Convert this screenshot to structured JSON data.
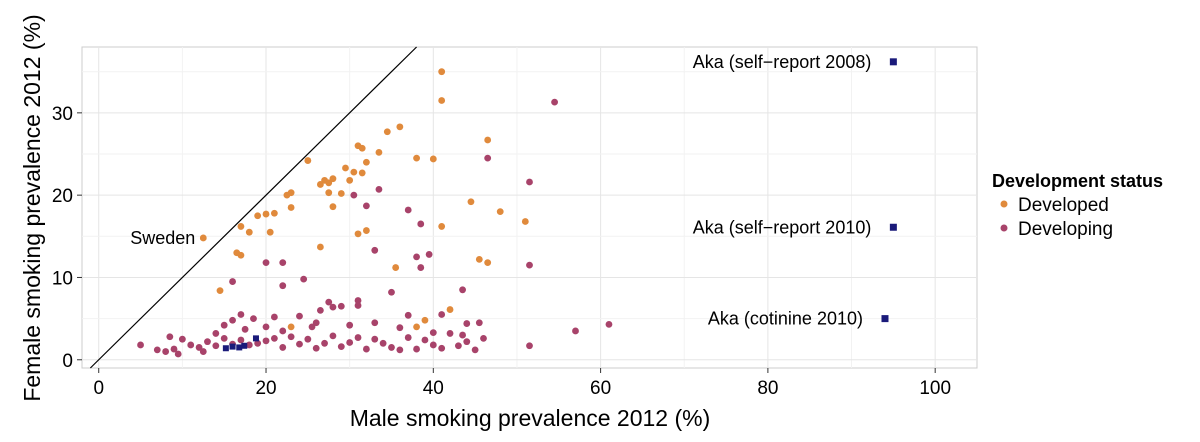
{
  "chart_data": {
    "type": "scatter",
    "xlabel": "Male smoking prevalence 2012 (%)",
    "ylabel": "Female smoking prevalence 2012 (%)",
    "xlim": [
      -2,
      105
    ],
    "ylim": [
      -1,
      38
    ],
    "x_ticks": [
      0,
      20,
      40,
      60,
      80,
      100
    ],
    "y_ticks": [
      0,
      10,
      20,
      30
    ],
    "grid": true,
    "legend": {
      "title": "Development status",
      "position": "right",
      "entries": [
        {
          "label": "Developed",
          "color": "#E08A3C"
        },
        {
          "label": "Developing",
          "color": "#A8436A"
        }
      ]
    },
    "reference_line": {
      "label": "y = x",
      "slope": 1,
      "intercept": 0,
      "color": "#000000"
    },
    "series": [
      {
        "name": "Developed",
        "color": "#E08A3C",
        "points": [
          [
            41,
            35
          ],
          [
            41,
            31.5
          ],
          [
            36,
            28.3
          ],
          [
            34.5,
            27.7
          ],
          [
            46.5,
            26.7
          ],
          [
            31,
            26
          ],
          [
            31.5,
            25.7
          ],
          [
            33.5,
            25.2
          ],
          [
            40,
            24.4
          ],
          [
            38,
            24.5
          ],
          [
            25,
            24.2
          ],
          [
            32,
            24
          ],
          [
            31.5,
            22.7
          ],
          [
            29.5,
            23.3
          ],
          [
            30.5,
            22.8
          ],
          [
            30,
            21.8
          ],
          [
            27,
            21.8
          ],
          [
            27.5,
            21.5
          ],
          [
            26.5,
            21.3
          ],
          [
            28,
            22
          ],
          [
            29,
            20.2
          ],
          [
            27.5,
            20.3
          ],
          [
            23,
            20.3
          ],
          [
            22.5,
            20
          ],
          [
            21,
            17.8
          ],
          [
            19,
            17.5
          ],
          [
            20,
            17.7
          ],
          [
            23,
            18.5
          ],
          [
            28,
            18.6
          ],
          [
            44.5,
            19.2
          ],
          [
            48,
            18
          ],
          [
            51,
            16.8
          ],
          [
            17,
            16.2
          ],
          [
            18,
            15.5
          ],
          [
            20.5,
            15.5
          ],
          [
            31,
            15.3
          ],
          [
            32,
            15.7
          ],
          [
            41,
            16.2
          ],
          [
            16.5,
            13
          ],
          [
            17,
            12.7
          ],
          [
            26.5,
            13.7
          ],
          [
            12.5,
            14.8
          ],
          [
            35.5,
            11.2
          ],
          [
            45.5,
            12.2
          ],
          [
            46.5,
            11.8
          ],
          [
            14.5,
            8.4
          ],
          [
            23,
            4
          ],
          [
            39,
            4.8
          ],
          [
            38,
            4
          ],
          [
            42,
            6.1
          ]
        ]
      },
      {
        "name": "Developing",
        "color": "#A8436A",
        "points": [
          [
            54.5,
            31.3
          ],
          [
            46.5,
            24.5
          ],
          [
            51.5,
            21.6
          ],
          [
            30.5,
            20
          ],
          [
            33.5,
            20.7
          ],
          [
            32,
            18.7
          ],
          [
            37,
            18.2
          ],
          [
            38.5,
            16.5
          ],
          [
            33,
            13.3
          ],
          [
            38,
            12.5
          ],
          [
            39.5,
            12.8
          ],
          [
            38.5,
            11.2
          ],
          [
            51.5,
            11.5
          ],
          [
            20,
            11.8
          ],
          [
            22,
            11.8
          ],
          [
            16,
            9.5
          ],
          [
            24.5,
            9.8
          ],
          [
            22,
            9
          ],
          [
            31,
            7.2
          ],
          [
            43.5,
            8.5
          ],
          [
            29,
            6.5
          ],
          [
            27.5,
            7
          ],
          [
            26.5,
            6
          ],
          [
            35,
            8.2
          ],
          [
            18.5,
            5
          ],
          [
            20,
            4
          ],
          [
            17.5,
            3.7
          ],
          [
            22,
            3.5
          ],
          [
            25.5,
            4
          ],
          [
            30,
            4.2
          ],
          [
            33,
            4.5
          ],
          [
            36,
            3.9
          ],
          [
            40,
            3.3
          ],
          [
            43.5,
            3
          ],
          [
            45.5,
            4.5
          ],
          [
            57,
            3.5
          ],
          [
            61,
            4.3
          ],
          [
            5,
            1.8
          ],
          [
            7,
            1.2
          ],
          [
            8,
            1
          ],
          [
            9,
            1.3
          ],
          [
            10,
            2.5
          ],
          [
            11,
            1.8
          ],
          [
            12,
            1.5
          ],
          [
            13,
            2.2
          ],
          [
            14,
            1.7
          ],
          [
            15,
            2.6
          ],
          [
            16,
            1.9
          ],
          [
            17,
            2.4
          ],
          [
            18,
            1.8
          ],
          [
            19,
            2
          ],
          [
            20,
            2.3
          ],
          [
            21,
            2.6
          ],
          [
            22,
            1.5
          ],
          [
            23,
            2.8
          ],
          [
            24,
            1.9
          ],
          [
            25,
            2.5
          ],
          [
            26,
            1.4
          ],
          [
            27,
            2
          ],
          [
            28,
            2.9
          ],
          [
            29,
            1.6
          ],
          [
            30,
            2.1
          ],
          [
            31,
            2.7
          ],
          [
            32,
            1.3
          ],
          [
            33,
            2.5
          ],
          [
            34,
            2
          ],
          [
            35,
            1.5
          ],
          [
            36,
            1.2
          ],
          [
            37,
            2.7
          ],
          [
            38,
            1.3
          ],
          [
            39,
            2.4
          ],
          [
            40,
            1.8
          ],
          [
            41,
            1.4
          ],
          [
            42,
            3.2
          ],
          [
            43,
            1.7
          ],
          [
            44,
            2.2
          ],
          [
            45,
            1.2
          ],
          [
            46,
            2.6
          ],
          [
            51.5,
            1.7
          ],
          [
            8.5,
            2.8
          ],
          [
            9.5,
            0.7
          ],
          [
            12.5,
            1
          ],
          [
            14,
            3.2
          ],
          [
            15,
            4.2
          ],
          [
            16,
            4.8
          ],
          [
            17,
            5.5
          ],
          [
            21,
            5.2
          ],
          [
            24,
            5.3
          ],
          [
            26,
            4.5
          ],
          [
            28,
            6.4
          ],
          [
            31,
            6.6
          ],
          [
            37,
            5.4
          ],
          [
            41,
            5.5
          ],
          [
            44,
            4.4
          ]
        ]
      },
      {
        "name": "Aka",
        "color": "#1A1A7A",
        "points": [
          [
            15.2,
            1.4
          ],
          [
            16,
            1.6
          ],
          [
            16.8,
            1.5
          ],
          [
            17.4,
            1.7
          ],
          [
            18.8,
            2.6
          ]
        ]
      }
    ],
    "annotations": [
      {
        "text": "Sweden",
        "x": 12.5,
        "y": 14.8
      },
      {
        "text": "Aka (self−report 2008)",
        "x": 95,
        "y": 36.2,
        "marker": "square",
        "color": "#1A1A7A"
      },
      {
        "text": "Aka (self−report 2010)",
        "x": 95,
        "y": 16.1,
        "marker": "square",
        "color": "#1A1A7A"
      },
      {
        "text": "Aka (cotinine 2010)",
        "x": 94,
        "y": 5,
        "marker": "square",
        "color": "#1A1A7A"
      }
    ]
  }
}
